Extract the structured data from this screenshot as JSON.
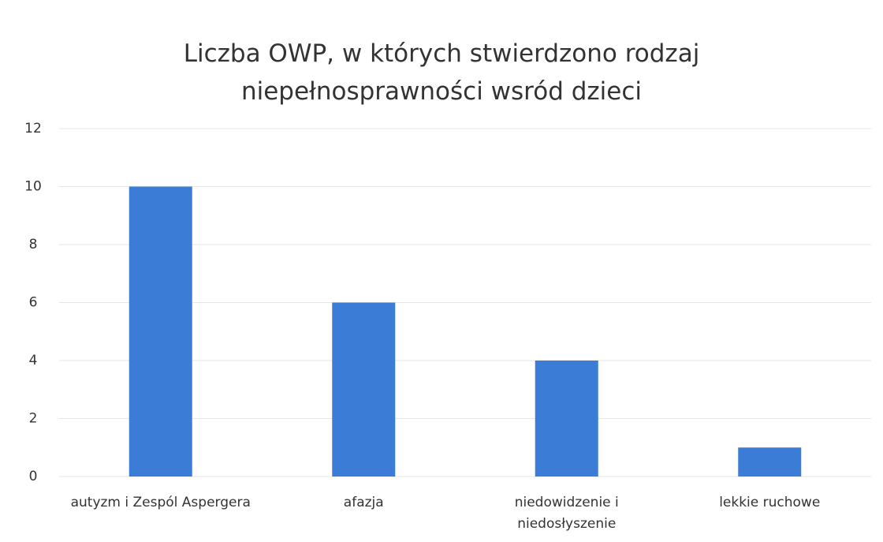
{
  "chart_data": {
    "type": "bar",
    "title": "Liczba OWP, w których stwierdzono rodzaj niepełnosprawności wsród dzieci",
    "categories": [
      "autyzm i Zespól Aspergera",
      "afazja",
      "niedowidzenie i niedosłyszenie",
      "lekkie ruchowe"
    ],
    "values": [
      10,
      6,
      4,
      1
    ],
    "color": "#3b7dd6",
    "ylim": [
      0,
      12
    ],
    "yticks": [
      0,
      2,
      4,
      6,
      8,
      10,
      12
    ],
    "grid": true
  }
}
